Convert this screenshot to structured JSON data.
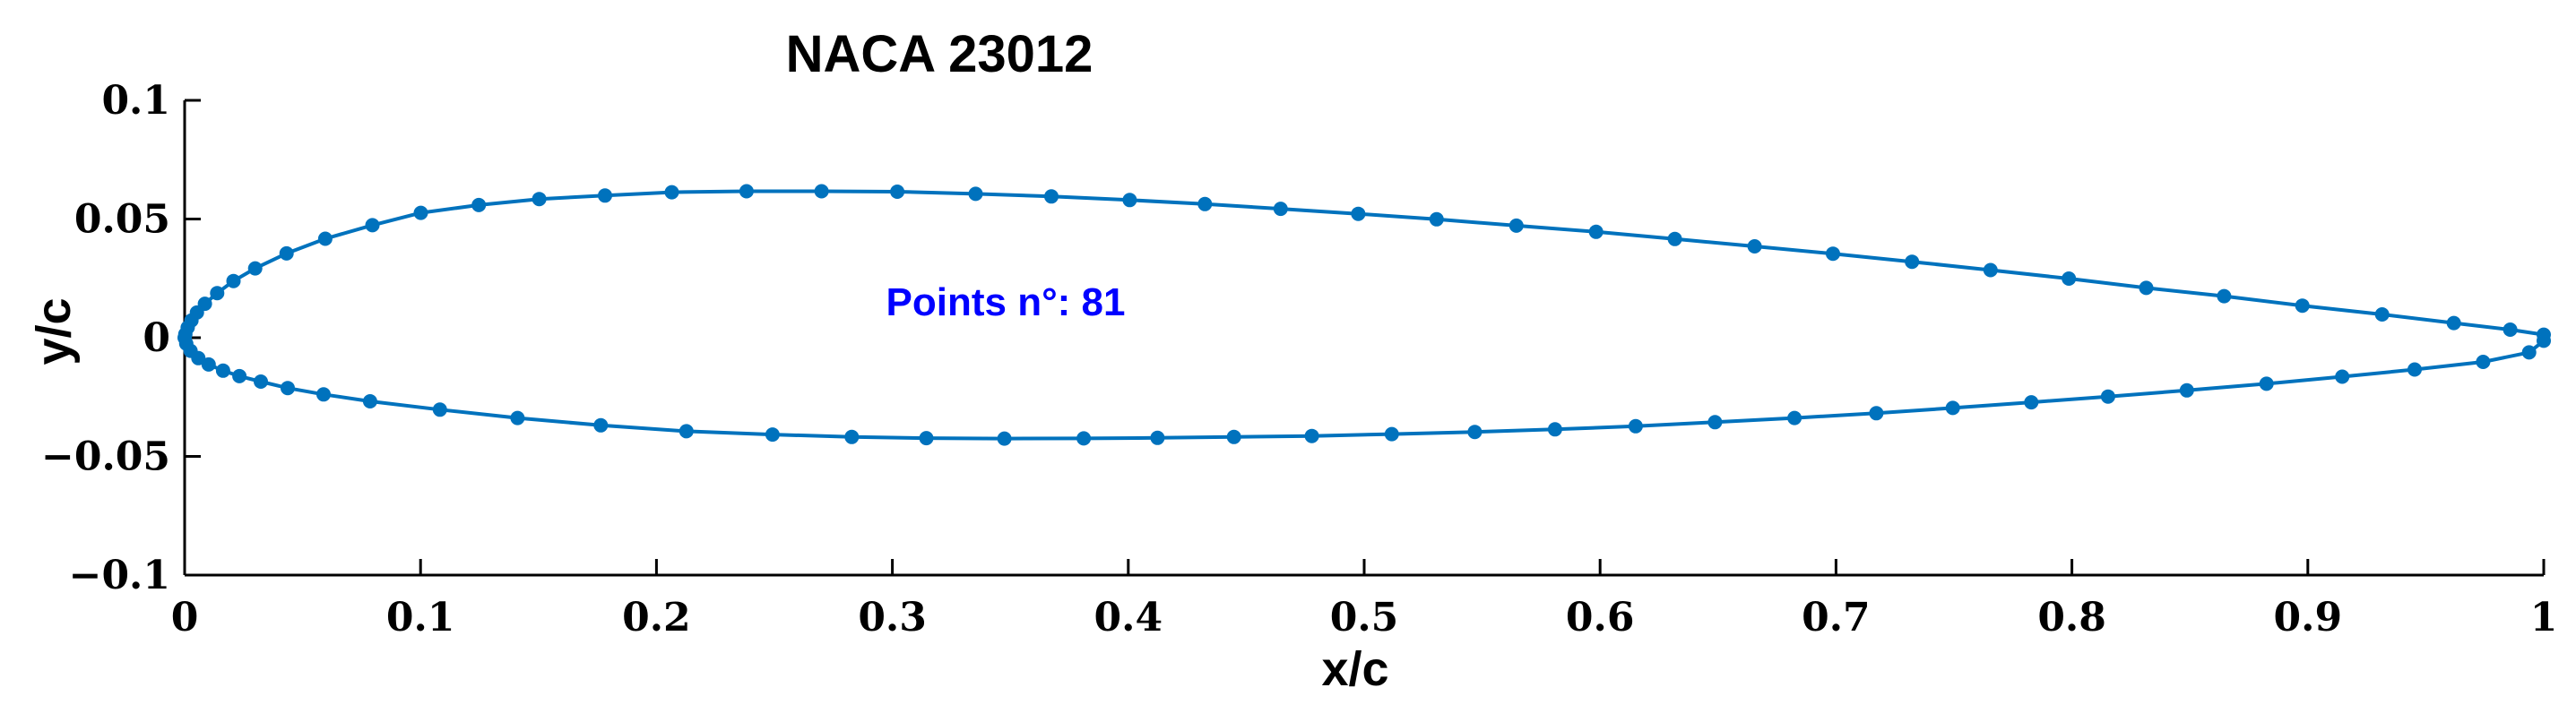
{
  "chart_data": {
    "type": "line",
    "title": "NACA 23012",
    "xlabel": "x/c",
    "ylabel": "y/c",
    "xlim": [
      0,
      1
    ],
    "ylim": [
      -0.1,
      0.1
    ],
    "x_ticks": [
      "0",
      "0.1",
      "0.2",
      "0.3",
      "0.4",
      "0.5",
      "0.6",
      "0.7",
      "0.8",
      "0.9",
      "1"
    ],
    "y_ticks": [
      "−0.1",
      "−0.05",
      "0",
      "0.05",
      "0.1"
    ],
    "grid": false,
    "annotation": {
      "text": "Points n°: 81",
      "color": "#0000ff"
    },
    "series": [
      {
        "color": "#0072bd",
        "marker": "dot",
        "x": [
          1.0,
          0.9858,
          0.9619,
          0.9315,
          0.8977,
          0.8645,
          0.8315,
          0.7987,
          0.7655,
          0.7322,
          0.6987,
          0.6655,
          0.6317,
          0.5983,
          0.5645,
          0.5307,
          0.4975,
          0.4646,
          0.4325,
          0.4006,
          0.3674,
          0.3353,
          0.3021,
          0.27,
          0.2382,
          0.2065,
          0.1782,
          0.1503,
          0.1247,
          0.1001,
          0.0796,
          0.0596,
          0.0432,
          0.0299,
          0.0207,
          0.0138,
          0.0086,
          0.0052,
          0.0029,
          0.0013,
          0.0003,
          0.0,
          0.0007,
          0.0025,
          0.0058,
          0.0102,
          0.0163,
          0.0232,
          0.0323,
          0.0437,
          0.0589,
          0.0786,
          0.1082,
          0.1411,
          0.1764,
          0.2127,
          0.2492,
          0.2828,
          0.3144,
          0.3475,
          0.3811,
          0.4124,
          0.4448,
          0.4778,
          0.5117,
          0.5469,
          0.5809,
          0.6151,
          0.6487,
          0.6824,
          0.7171,
          0.7495,
          0.7828,
          0.8153,
          0.8487,
          0.8825,
          0.9146,
          0.9453,
          0.9743,
          0.9938,
          1.0
        ],
        "y": [
          0.0013,
          0.0034,
          0.0062,
          0.0098,
          0.0135,
          0.0175,
          0.021,
          0.0249,
          0.0285,
          0.032,
          0.0354,
          0.0385,
          0.0416,
          0.0446,
          0.0472,
          0.0499,
          0.0522,
          0.0543,
          0.0563,
          0.058,
          0.0595,
          0.0606,
          0.0615,
          0.0617,
          0.0617,
          0.0613,
          0.0599,
          0.0584,
          0.0559,
          0.0526,
          0.0474,
          0.0417,
          0.0355,
          0.0292,
          0.0239,
          0.0188,
          0.0143,
          0.0106,
          0.0073,
          0.0043,
          0.0015,
          0.0,
          -0.0025,
          -0.0055,
          -0.0086,
          -0.0113,
          -0.0139,
          -0.0162,
          -0.0185,
          -0.0212,
          -0.0239,
          -0.0268,
          -0.0303,
          -0.0338,
          -0.0369,
          -0.0394,
          -0.0408,
          -0.0418,
          -0.0423,
          -0.0425,
          -0.0424,
          -0.0422,
          -0.0418,
          -0.0414,
          -0.0406,
          -0.0397,
          -0.0386,
          -0.0373,
          -0.0356,
          -0.0338,
          -0.0318,
          -0.0296,
          -0.0272,
          -0.0248,
          -0.0222,
          -0.0194,
          -0.0164,
          -0.0134,
          -0.0102,
          -0.0062,
          -0.0013
        ]
      }
    ]
  }
}
